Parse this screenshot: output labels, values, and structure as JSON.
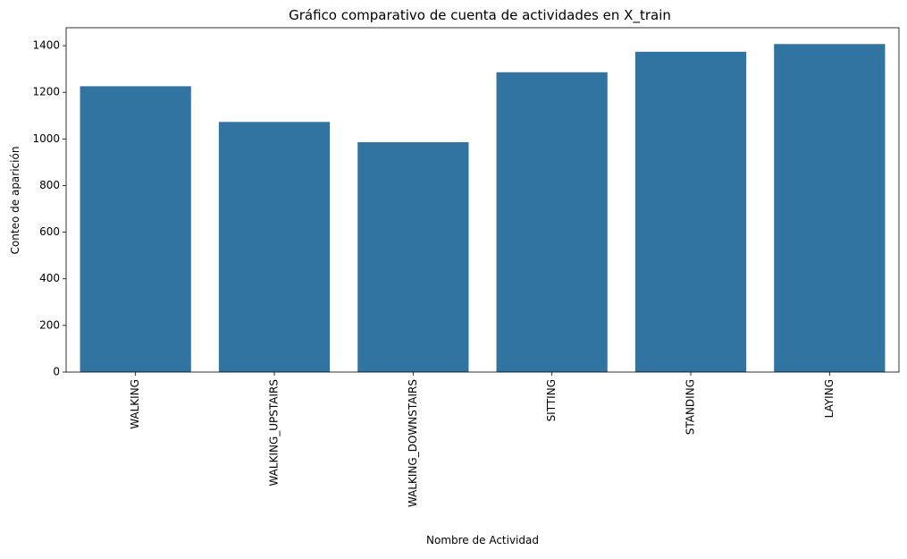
{
  "chart_data": {
    "type": "bar",
    "title": "Gráfico comparativo de cuenta de actividades en X_train",
    "xlabel": "Nombre de Actividad",
    "ylabel": "Conteo de aparición",
    "categories": [
      "WALKING",
      "WALKING_UPSTAIRS",
      "WALKING_DOWNSTAIRS",
      "SITTING",
      "STANDING",
      "LAYING"
    ],
    "values": [
      1226,
      1073,
      986,
      1286,
      1374,
      1407
    ],
    "yticks": [
      0,
      200,
      400,
      600,
      800,
      1000,
      1200,
      1400
    ],
    "ylim": [
      0,
      1477
    ],
    "grid": false,
    "legend": "none",
    "bar_color": "#3274a1",
    "axis_color": "#000000"
  }
}
